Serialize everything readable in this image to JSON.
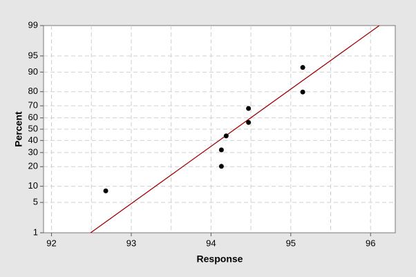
{
  "chart_data": {
    "type": "scatter",
    "x_label": "Response",
    "y_label": "Percent",
    "y_scale": "normal-probability",
    "xlim": [
      91.9,
      96.31
    ],
    "ylim": [
      1,
      99
    ],
    "xticks": [
      92,
      93,
      94,
      95,
      96
    ],
    "xminor": [
      92.5,
      93.5,
      94.5,
      95.5
    ],
    "yticks": [
      1,
      5,
      10,
      20,
      30,
      40,
      50,
      60,
      70,
      80,
      90,
      95,
      99
    ],
    "grid": true,
    "series": [
      {
        "color": "#000000",
        "x": [
          92.68,
          94.13,
          94.13,
          94.19,
          94.47,
          94.47,
          95.15,
          95.15
        ],
        "values": [
          8.3,
          20.2,
          32.1,
          44.0,
          56.0,
          67.9,
          79.8,
          91.7
        ]
      }
    ],
    "fit_line": {
      "color": "#a00000",
      "x": [
        92.49,
        96.11
      ],
      "values": [
        1,
        99
      ]
    }
  }
}
